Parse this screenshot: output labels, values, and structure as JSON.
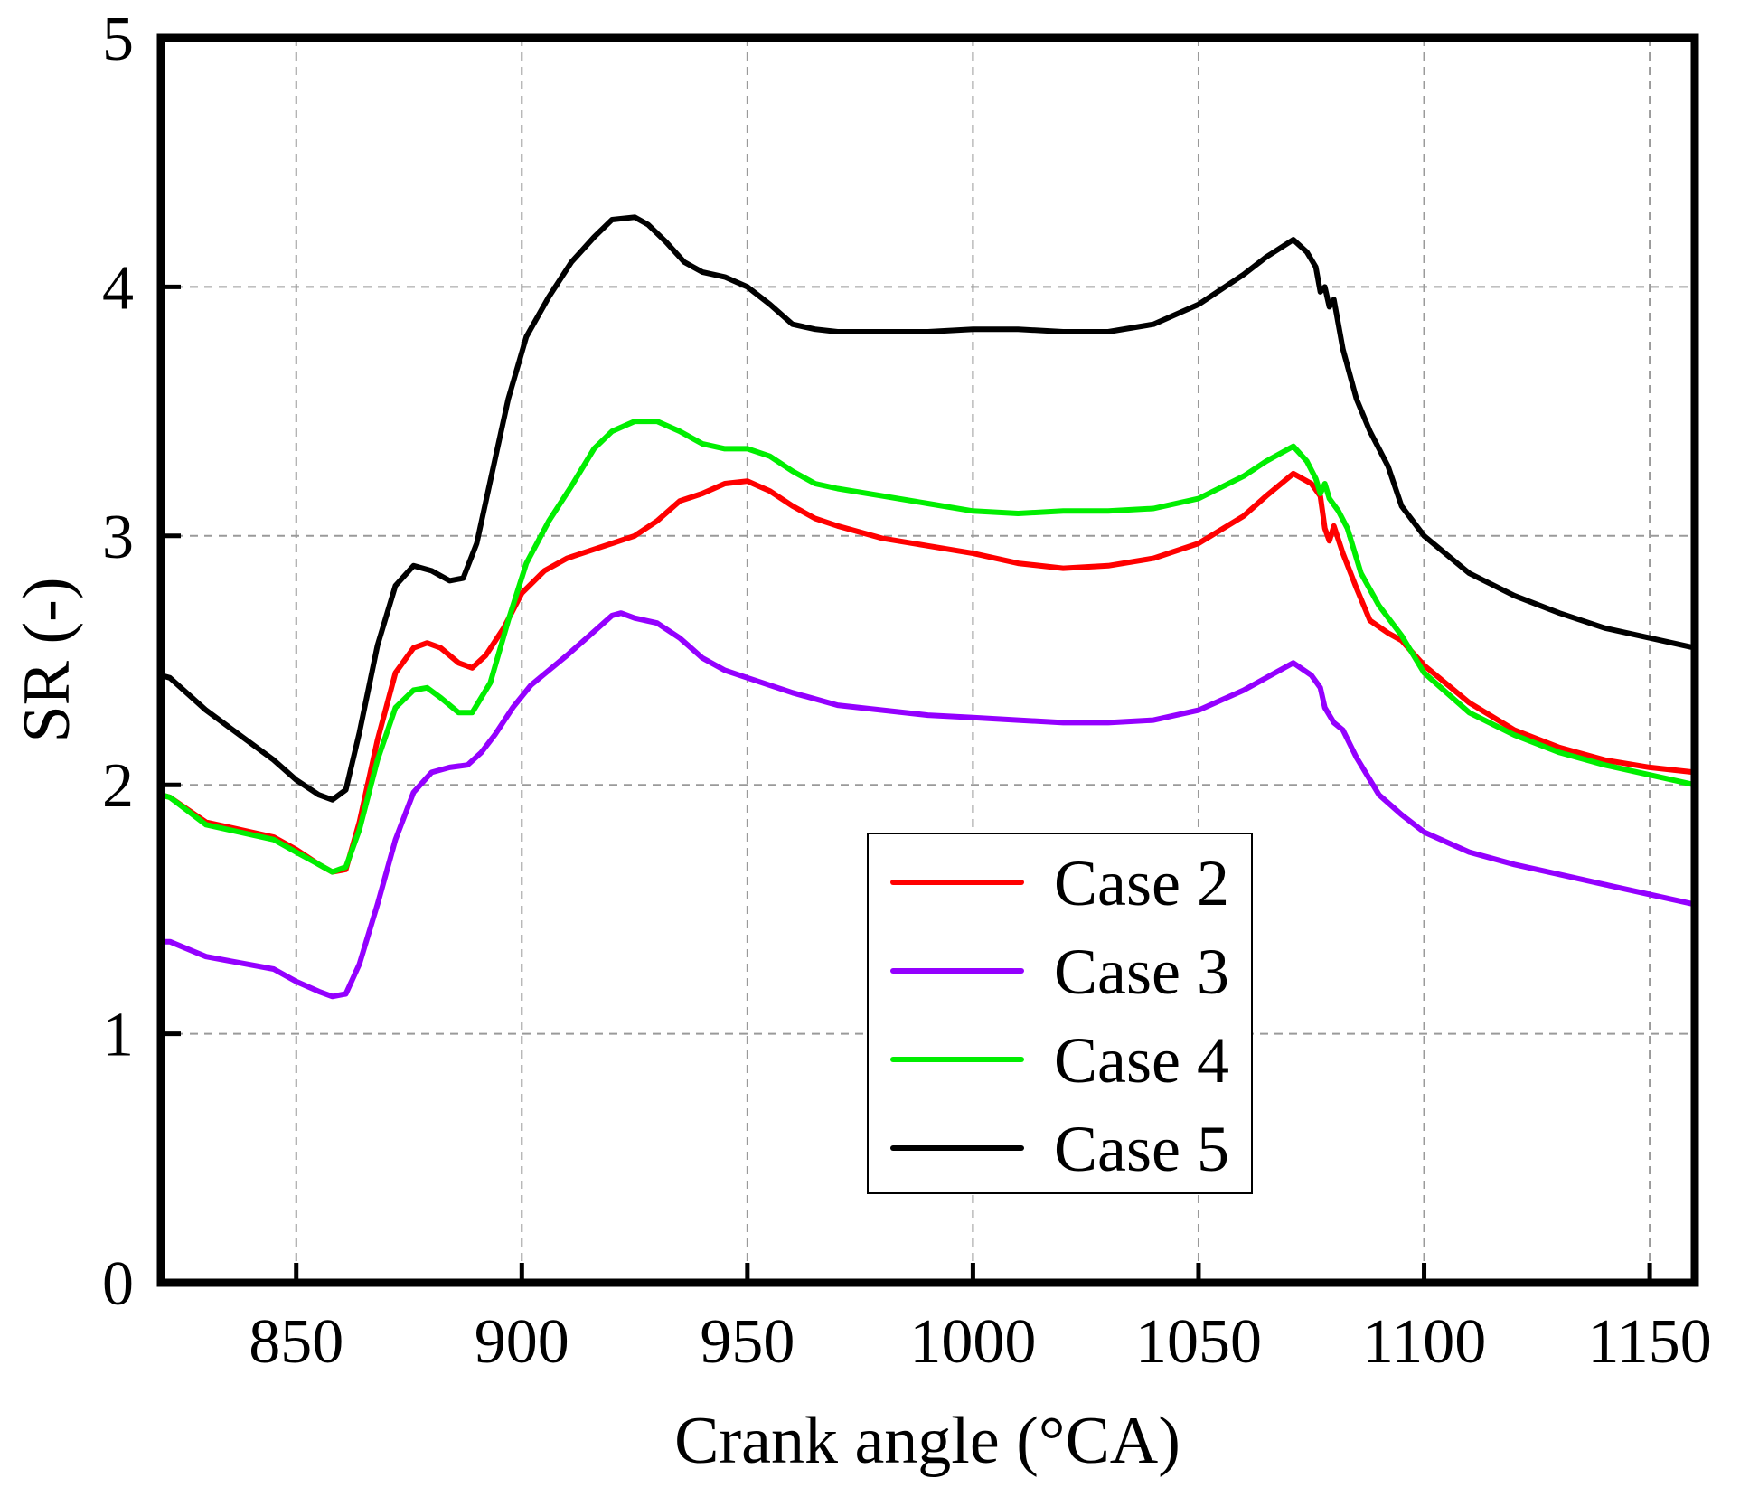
{
  "chart_data": {
    "type": "line",
    "title": "",
    "xlabel": "Crank angle (°CA)",
    "ylabel": "SR (-)",
    "xlim": [
      820,
      1160
    ],
    "ylim": [
      0,
      5
    ],
    "xticks": [
      850,
      900,
      950,
      1000,
      1050,
      1100,
      1150
    ],
    "yticks": [
      0,
      1,
      2,
      3,
      4,
      5
    ],
    "grid": true,
    "legend_position": "bottom-center",
    "series": [
      {
        "name": "Case 2",
        "color": "#ff0000",
        "x": [
          820,
          822,
          830,
          845,
          850,
          855,
          858,
          861,
          864,
          868,
          872,
          876,
          879,
          882,
          886,
          889,
          892,
          896,
          900,
          905,
          910,
          915,
          920,
          925,
          930,
          935,
          940,
          945,
          950,
          955,
          960,
          965,
          970,
          980,
          990,
          1000,
          1010,
          1020,
          1030,
          1040,
          1050,
          1060,
          1065,
          1071,
          1075,
          1077,
          1078,
          1079,
          1080,
          1082,
          1085,
          1088,
          1092,
          1095,
          1100,
          1110,
          1120,
          1130,
          1140,
          1150,
          1160
        ],
        "y": [
          1.96,
          1.95,
          1.85,
          1.79,
          1.74,
          1.68,
          1.65,
          1.66,
          1.85,
          2.18,
          2.45,
          2.55,
          2.57,
          2.55,
          2.49,
          2.47,
          2.52,
          2.63,
          2.77,
          2.86,
          2.91,
          2.94,
          2.97,
          3.0,
          3.06,
          3.14,
          3.17,
          3.21,
          3.22,
          3.18,
          3.12,
          3.07,
          3.04,
          2.99,
          2.96,
          2.93,
          2.89,
          2.87,
          2.88,
          2.91,
          2.97,
          3.08,
          3.16,
          3.25,
          3.21,
          3.16,
          3.03,
          2.98,
          3.04,
          2.93,
          2.79,
          2.66,
          2.61,
          2.58,
          2.48,
          2.33,
          2.22,
          2.15,
          2.1,
          2.07,
          2.05
        ]
      },
      {
        "name": "Case 3",
        "color": "#9400ff",
        "x": [
          820,
          822,
          830,
          845,
          850,
          855,
          858,
          861,
          864,
          868,
          872,
          876,
          880,
          884,
          888,
          891,
          894,
          898,
          902,
          906,
          910,
          915,
          920,
          922,
          925,
          930,
          935,
          940,
          945,
          950,
          960,
          970,
          980,
          990,
          1000,
          1010,
          1020,
          1030,
          1040,
          1050,
          1060,
          1065,
          1071,
          1075,
          1077,
          1078,
          1079,
          1080,
          1082,
          1085,
          1090,
          1095,
          1100,
          1110,
          1120,
          1130,
          1140,
          1150,
          1160
        ],
        "y": [
          1.37,
          1.37,
          1.31,
          1.26,
          1.21,
          1.17,
          1.15,
          1.16,
          1.28,
          1.52,
          1.78,
          1.97,
          2.05,
          2.07,
          2.08,
          2.13,
          2.2,
          2.31,
          2.4,
          2.46,
          2.52,
          2.6,
          2.68,
          2.69,
          2.67,
          2.65,
          2.59,
          2.51,
          2.46,
          2.43,
          2.37,
          2.32,
          2.3,
          2.28,
          2.27,
          2.26,
          2.25,
          2.25,
          2.26,
          2.3,
          2.38,
          2.43,
          2.49,
          2.44,
          2.39,
          2.31,
          2.28,
          2.25,
          2.22,
          2.11,
          1.96,
          1.88,
          1.81,
          1.73,
          1.68,
          1.64,
          1.6,
          1.56,
          1.52
        ]
      },
      {
        "name": "Case 4",
        "color": "#00ee00",
        "x": [
          820,
          822,
          830,
          845,
          850,
          855,
          858,
          861,
          864,
          868,
          872,
          876,
          879,
          882,
          886,
          889,
          893,
          897,
          901,
          906,
          911,
          916,
          920,
          925,
          930,
          935,
          940,
          945,
          950,
          955,
          960,
          965,
          970,
          980,
          990,
          1000,
          1010,
          1020,
          1030,
          1040,
          1050,
          1060,
          1065,
          1071,
          1074,
          1076,
          1077,
          1078,
          1079,
          1081,
          1083,
          1086,
          1090,
          1095,
          1100,
          1110,
          1120,
          1130,
          1140,
          1150,
          1160
        ],
        "y": [
          1.96,
          1.95,
          1.84,
          1.78,
          1.73,
          1.68,
          1.65,
          1.67,
          1.82,
          2.1,
          2.31,
          2.38,
          2.39,
          2.35,
          2.29,
          2.29,
          2.41,
          2.66,
          2.89,
          3.06,
          3.2,
          3.35,
          3.42,
          3.46,
          3.46,
          3.42,
          3.37,
          3.35,
          3.35,
          3.32,
          3.26,
          3.21,
          3.19,
          3.16,
          3.13,
          3.1,
          3.09,
          3.1,
          3.1,
          3.11,
          3.15,
          3.24,
          3.3,
          3.36,
          3.3,
          3.23,
          3.17,
          3.21,
          3.15,
          3.1,
          3.03,
          2.85,
          2.72,
          2.6,
          2.45,
          2.29,
          2.2,
          2.13,
          2.08,
          2.04,
          2.0
        ]
      },
      {
        "name": "Case 5",
        "color": "#000000",
        "x": [
          820,
          822,
          830,
          845,
          850,
          855,
          858,
          861,
          864,
          868,
          872,
          876,
          880,
          884,
          887,
          890,
          893,
          897,
          901,
          906,
          911,
          916,
          920,
          925,
          928,
          932,
          936,
          940,
          945,
          950,
          955,
          960,
          965,
          970,
          980,
          990,
          1000,
          1010,
          1020,
          1030,
          1040,
          1050,
          1060,
          1065,
          1071,
          1074,
          1076,
          1077,
          1078,
          1079,
          1080,
          1082,
          1085,
          1088,
          1092,
          1095,
          1100,
          1110,
          1120,
          1130,
          1140,
          1150,
          1160
        ],
        "y": [
          2.44,
          2.43,
          2.3,
          2.1,
          2.02,
          1.96,
          1.94,
          1.98,
          2.21,
          2.56,
          2.8,
          2.88,
          2.86,
          2.82,
          2.83,
          2.97,
          3.22,
          3.55,
          3.8,
          3.96,
          4.1,
          4.2,
          4.27,
          4.28,
          4.25,
          4.18,
          4.1,
          4.06,
          4.04,
          4.0,
          3.93,
          3.85,
          3.83,
          3.82,
          3.82,
          3.82,
          3.83,
          3.83,
          3.82,
          3.82,
          3.85,
          3.93,
          4.05,
          4.12,
          4.19,
          4.14,
          4.08,
          3.98,
          4.0,
          3.92,
          3.95,
          3.75,
          3.55,
          3.42,
          3.28,
          3.12,
          3.0,
          2.85,
          2.76,
          2.69,
          2.63,
          2.59,
          2.55
        ]
      }
    ]
  }
}
